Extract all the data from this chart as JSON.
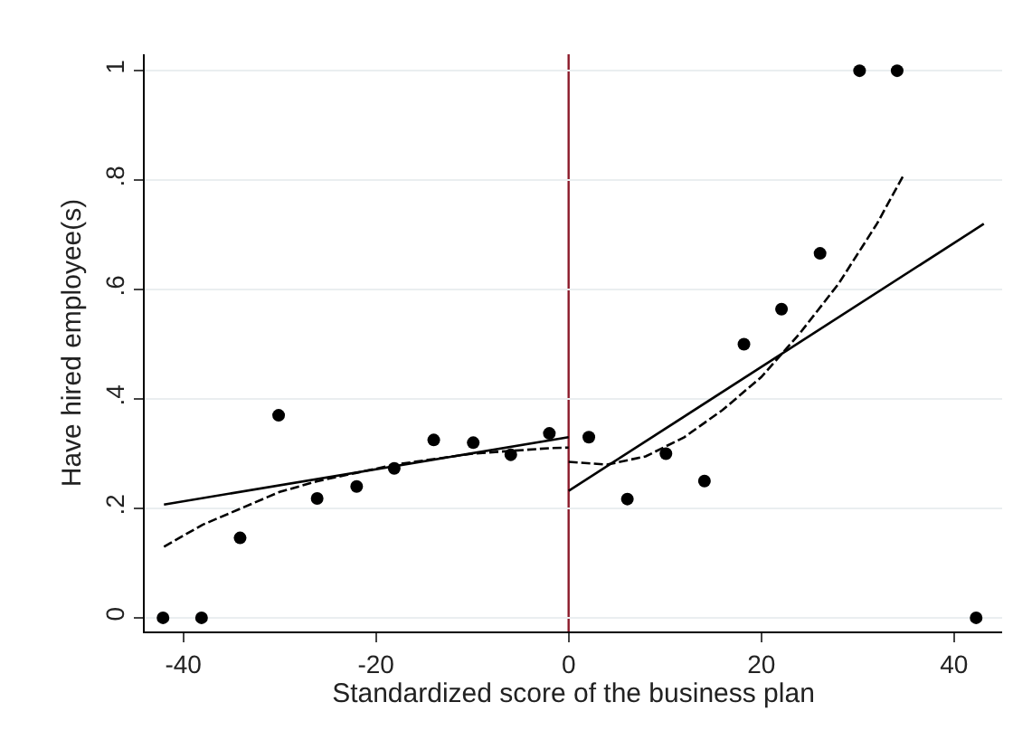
{
  "chart_data": {
    "type": "scatter",
    "xlabel": "Standardized score of the business plan",
    "ylabel": "Have hired employee(s)",
    "xlim": [
      -44,
      45
    ],
    "ylim": [
      -0.025,
      1.03
    ],
    "xticks": [
      -40,
      -20,
      0,
      20,
      40
    ],
    "yticks": [
      {
        "value": 0,
        "label": "0"
      },
      {
        "value": 0.2,
        "label": ".2"
      },
      {
        "value": 0.4,
        "label": ".4"
      },
      {
        "value": 0.6,
        "label": ".6"
      },
      {
        "value": 0.8,
        "label": ".8"
      },
      {
        "value": 1,
        "label": "1"
      }
    ],
    "grid": "y",
    "ref_lines": [
      {
        "axis": "x",
        "value": 0,
        "color": "#8b1a2a",
        "line_style": "solid"
      }
    ],
    "series": [
      {
        "color": "#000000",
        "marker": "circle",
        "x": [
          -42.1,
          -38.1,
          -34.1,
          -30.1,
          -26.1,
          -22.0,
          -18.1,
          -14.0,
          -9.9,
          -6.0,
          -2.0,
          2.1,
          6.1,
          10.1,
          14.1,
          18.2,
          22.1,
          26.1,
          30.2,
          34.1,
          42.3
        ],
        "values": [
          0,
          0,
          0.146,
          0.37,
          0.218,
          0.24,
          0.273,
          0.325,
          0.32,
          0.298,
          0.337,
          0.33,
          0.217,
          0.3,
          0.25,
          0.5,
          0.564,
          0.666,
          1,
          1,
          0
        ]
      },
      {
        "type": "line",
        "color": "#000000",
        "line_style": "solid",
        "x": [
          -42,
          0
        ],
        "values": [
          0.207,
          0.33
        ]
      },
      {
        "type": "line",
        "color": "#000000",
        "line_style": "solid",
        "x": [
          0,
          43.1
        ],
        "values": [
          0.232,
          0.72
        ]
      },
      {
        "type": "line",
        "color": "#000000",
        "line_style": "dashed",
        "x": [
          -42,
          -38,
          -34,
          -30,
          -26,
          -22,
          -18,
          -14,
          -10,
          -6,
          -2,
          0
        ],
        "values": [
          0.13,
          0.17,
          0.2,
          0.23,
          0.25,
          0.265,
          0.28,
          0.29,
          0.3,
          0.305,
          0.31,
          0.311
        ]
      },
      {
        "type": "line",
        "color": "#000000",
        "line_style": "dashed",
        "x": [
          0,
          4,
          8,
          12,
          16,
          20,
          24,
          28,
          32,
          34.8
        ],
        "values": [
          0.285,
          0.28,
          0.295,
          0.33,
          0.38,
          0.44,
          0.52,
          0.61,
          0.72,
          0.81
        ]
      }
    ]
  }
}
